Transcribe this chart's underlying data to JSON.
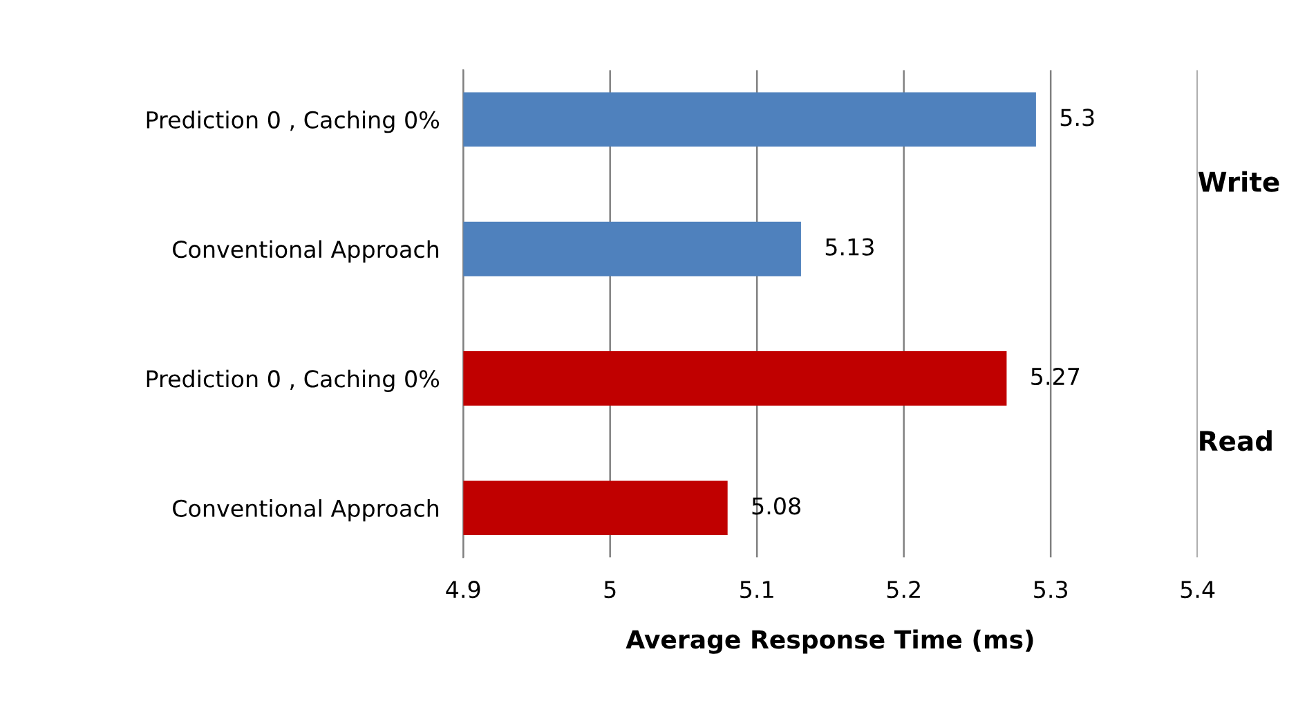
{
  "chart_data": {
    "type": "bar",
    "orientation": "horizontal",
    "categories": [
      "Prediction 0 , Caching 0%",
      "Conventional Approach",
      "Prediction 0 , Caching 0%",
      "Conventional Approach"
    ],
    "values": [
      5.29,
      5.13,
      5.27,
      5.08
    ],
    "colors": [
      "#4f81bd",
      "#4f81bd",
      "#c00000",
      "#c00000"
    ],
    "value_labels": [
      "5.3",
      "5.13",
      "5.27",
      "5.08"
    ],
    "xlabel": "Average Response Time (ms)",
    "xlim": [
      4.9,
      5.4
    ],
    "xticks": [
      4.9,
      5,
      5.1,
      5.2,
      5.3,
      5.4
    ],
    "grid": "x",
    "legend": false,
    "annotations": [
      "Write",
      "Read"
    ]
  }
}
